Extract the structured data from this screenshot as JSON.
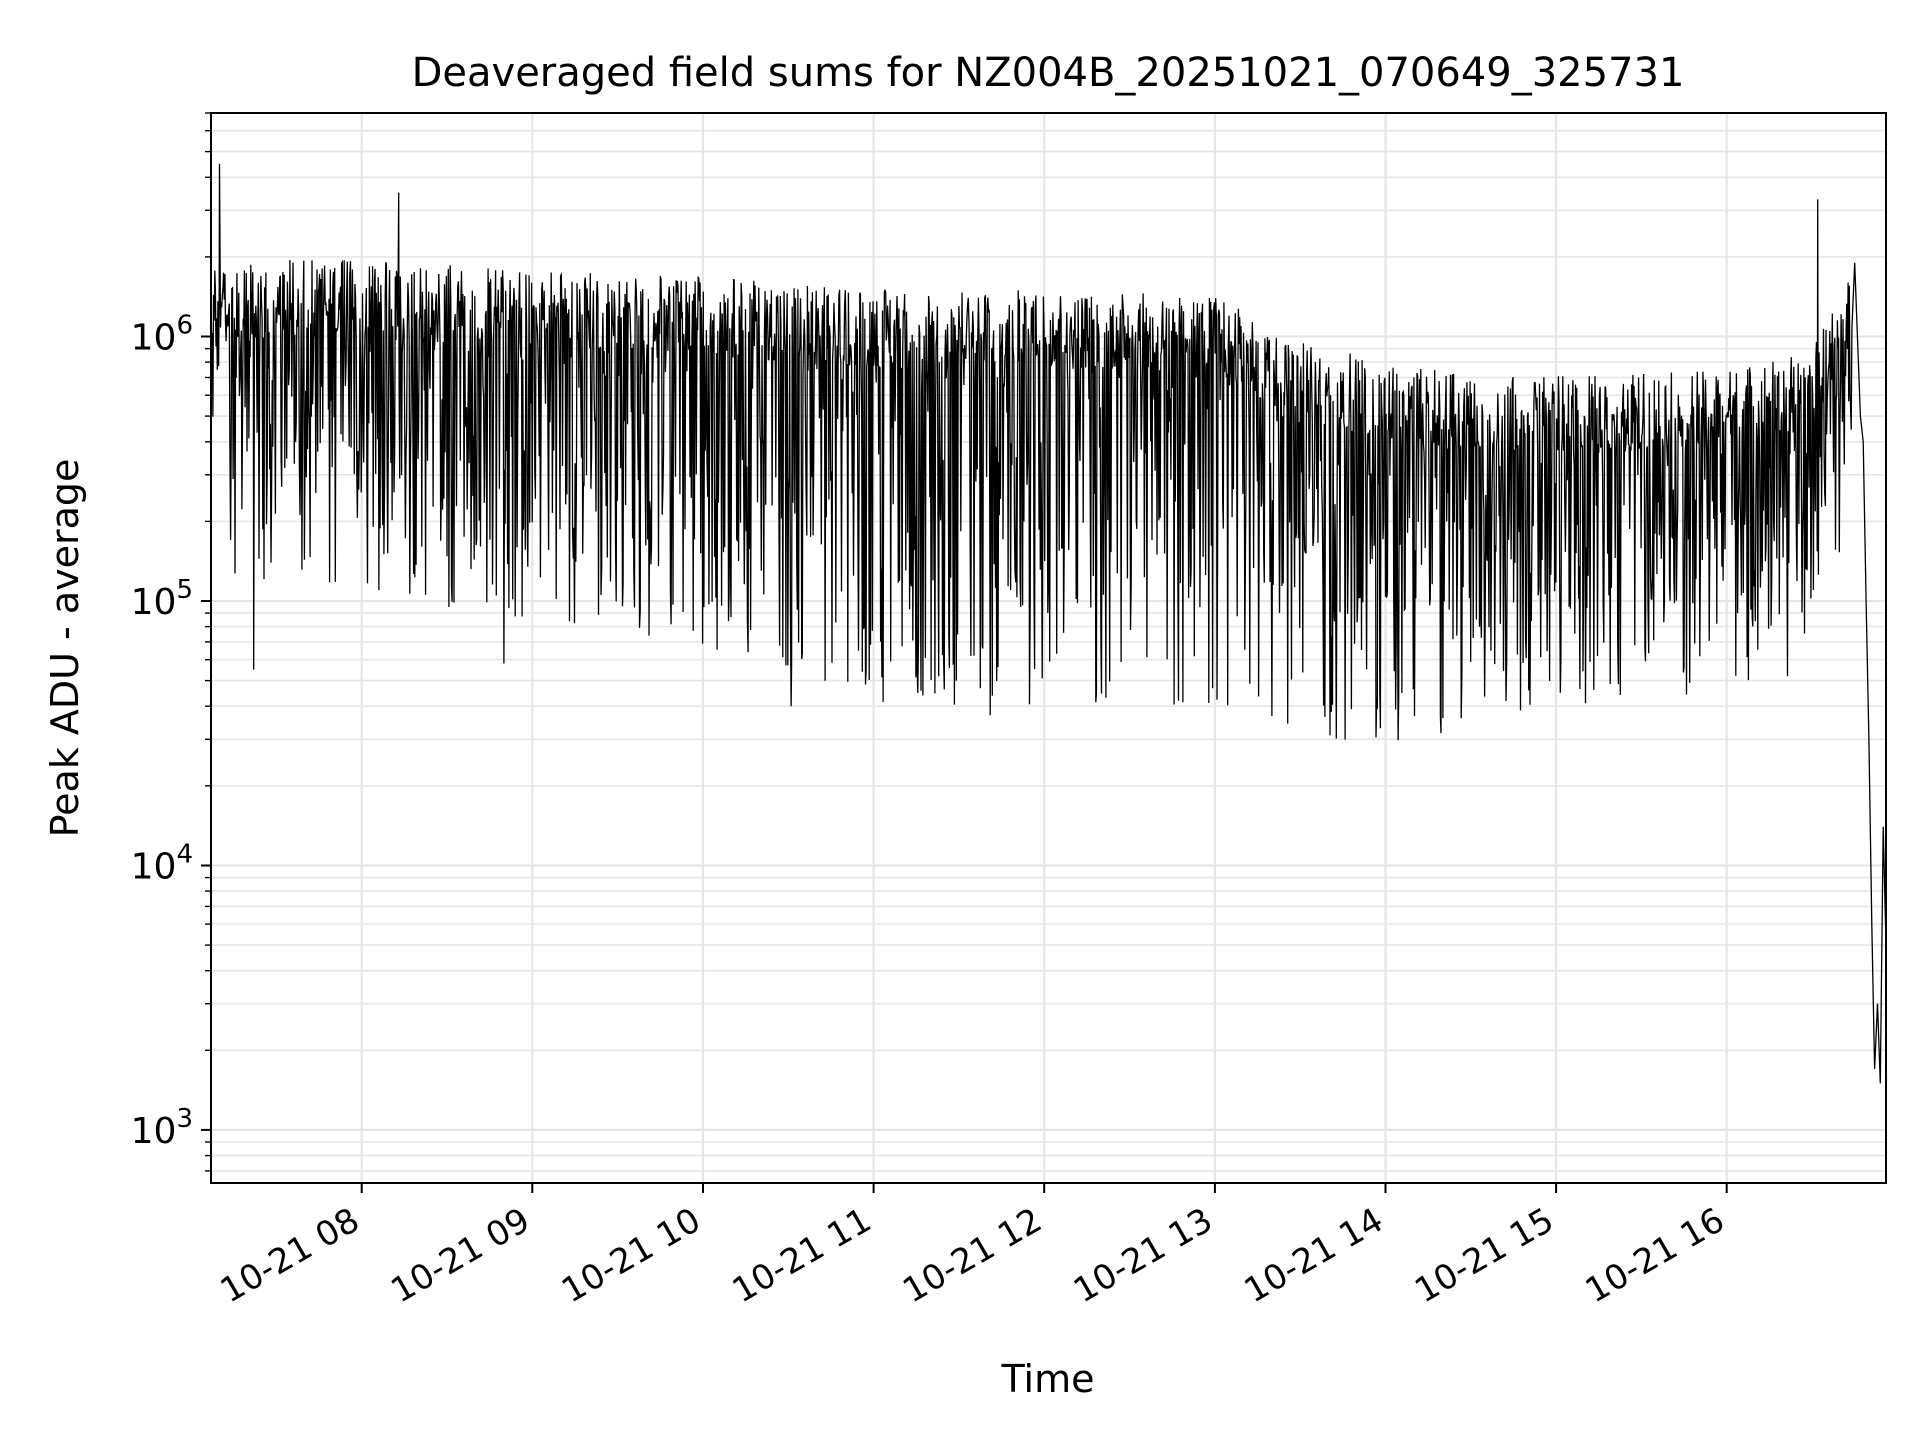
{
  "chart_data": {
    "type": "line",
    "title": "Deaveraged field sums for NZ004B_20251021_070649_325731",
    "xlabel": "Time",
    "ylabel": "Peak ADU - average",
    "y_scale": "log",
    "ylim": [
      630,
      7000000
    ],
    "xlim": [
      "2025-10-21T07:07:00",
      "2025-10-21T16:56:00"
    ],
    "x_ticks": [
      {
        "t": "2025-10-21T08:00:00",
        "label": "10-21 08"
      },
      {
        "t": "2025-10-21T09:00:00",
        "label": "10-21 09"
      },
      {
        "t": "2025-10-21T10:00:00",
        "label": "10-21 10"
      },
      {
        "t": "2025-10-21T11:00:00",
        "label": "10-21 11"
      },
      {
        "t": "2025-10-21T12:00:00",
        "label": "10-21 12"
      },
      {
        "t": "2025-10-21T13:00:00",
        "label": "10-21 13"
      },
      {
        "t": "2025-10-21T14:00:00",
        "label": "10-21 14"
      },
      {
        "t": "2025-10-21T15:00:00",
        "label": "10-21 15"
      },
      {
        "t": "2025-10-21T16:00:00",
        "label": "10-21 16"
      }
    ],
    "y_ticks": [
      {
        "value": 1000,
        "mantissa": "10",
        "exp": "3"
      },
      {
        "value": 10000,
        "mantissa": "10",
        "exp": "4"
      },
      {
        "value": 100000,
        "mantissa": "10",
        "exp": "5"
      },
      {
        "value": 1000000,
        "mantissa": "10",
        "exp": "6"
      }
    ],
    "grid": true,
    "line_color": "#000000",
    "grid_color": "#e6e6e6",
    "series_envelope": [
      {
        "t": "2025-10-21T07:07:00",
        "typical": 1000000,
        "low": 300000
      },
      {
        "t": "2025-10-21T07:30:00",
        "typical": 1100000,
        "low": 250000
      },
      {
        "t": "2025-10-21T08:00:00",
        "typical": 1100000,
        "low": 250000
      },
      {
        "t": "2025-10-21T09:00:00",
        "typical": 1000000,
        "low": 180000
      },
      {
        "t": "2025-10-21T10:00:00",
        "typical": 950000,
        "low": 150000
      },
      {
        "t": "2025-10-21T10:30:00",
        "typical": 900000,
        "low": 120000
      },
      {
        "t": "2025-10-21T11:00:00",
        "typical": 850000,
        "low": 90000
      },
      {
        "t": "2025-10-21T12:00:00",
        "typical": 850000,
        "low": 90000
      },
      {
        "t": "2025-10-21T13:00:00",
        "typical": 800000,
        "low": 90000
      },
      {
        "t": "2025-10-21T13:30:00",
        "typical": 550000,
        "low": 70000
      },
      {
        "t": "2025-10-21T14:00:00",
        "typical": 450000,
        "low": 60000
      },
      {
        "t": "2025-10-21T14:30:00",
        "typical": 400000,
        "low": 70000
      },
      {
        "t": "2025-10-21T15:00:00",
        "typical": 400000,
        "low": 90000
      },
      {
        "t": "2025-10-21T16:00:00",
        "typical": 420000,
        "low": 100000
      },
      {
        "t": "2025-10-21T16:30:00",
        "typical": 500000,
        "low": 120000
      },
      {
        "t": "2025-10-21T16:44:00",
        "typical": 1000000,
        "low": 400000
      }
    ],
    "notable_points": [
      {
        "t": "2025-10-21T07:10:00",
        "value": 4500000
      },
      {
        "t": "2025-10-21T08:13:00",
        "value": 3500000
      },
      {
        "t": "2025-10-21T07:22:00",
        "value": 55000
      },
      {
        "t": "2025-10-21T08:50:00",
        "value": 58000
      },
      {
        "t": "2025-10-21T10:31:00",
        "value": 40000
      },
      {
        "t": "2025-10-21T11:41:00",
        "value": 37000
      },
      {
        "t": "2025-10-21T13:48:00",
        "value": 39000
      },
      {
        "t": "2025-10-21T16:32:00",
        "value": 3300000
      }
    ],
    "tail": [
      {
        "t": "2025-10-21T16:45:00",
        "value": 1900000
      },
      {
        "t": "2025-10-21T16:47:00",
        "value": 500000
      },
      {
        "t": "2025-10-21T16:48:00",
        "value": 400000
      },
      {
        "t": "2025-10-21T16:49:00",
        "value": 100000
      },
      {
        "t": "2025-10-21T16:50:00",
        "value": 30000
      },
      {
        "t": "2025-10-21T16:51:00",
        "value": 6000
      },
      {
        "t": "2025-10-21T16:52:00",
        "value": 1700
      },
      {
        "t": "2025-10-21T16:53:00",
        "value": 3000
      },
      {
        "t": "2025-10-21T16:54:00",
        "value": 1500
      },
      {
        "t": "2025-10-21T16:55:00",
        "value": 14000
      },
      {
        "t": "2025-10-21T16:56:00",
        "value": 5000
      }
    ]
  }
}
